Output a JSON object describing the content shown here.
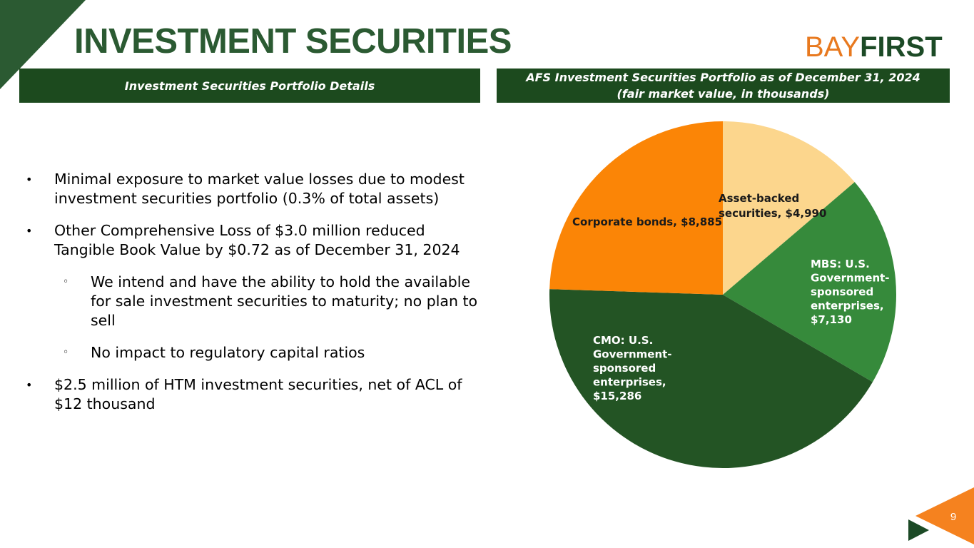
{
  "title": "INVESTMENT SECURITIES",
  "logo": {
    "bay": "BAY",
    "first": "FIRST"
  },
  "left_panel": {
    "heading": "Investment Securities Portfolio Details",
    "bullets": [
      {
        "level": 1,
        "marker": "•",
        "text": "Minimal exposure to market value losses due to modest investment securities portfolio (0.3% of total assets)"
      },
      {
        "level": 1,
        "marker": "•",
        "text": "Other Comprehensive Loss of $3.0 million reduced Tangible Book Value by $0.72 as of December 31, 2024"
      },
      {
        "level": 2,
        "marker": "◦",
        "text": "We intend and have the ability to hold the available for sale investment securities to maturity; no plan to sell"
      },
      {
        "level": 2,
        "marker": "◦",
        "text": "No impact to regulatory capital ratios"
      },
      {
        "level": 1,
        "marker": "•",
        "text": "$2.5 million of HTM investment securities, net of ACL of $12 thousand"
      }
    ]
  },
  "right_panel": {
    "heading_line1": "AFS Investment Securities Portfolio as of December 31, 2024",
    "heading_line2": "(fair market value, in thousands)"
  },
  "chart_data": {
    "type": "pie",
    "start": "12 o'clock, clockwise",
    "slices": [
      {
        "label_lines": [
          "Asset-backed",
          "securities, $4,990"
        ],
        "name": "Asset-backed securities",
        "value": 4990,
        "color": "#fcd68d",
        "label_color": "#1a1a1a"
      },
      {
        "label_lines": [
          "MBS: U.S.",
          "Government-",
          "sponsored",
          "enterprises,",
          "$7,130"
        ],
        "name": "MBS: U.S. Government-sponsored enterprises",
        "value": 7130,
        "color": "#368a3b",
        "label_color": "#ffffff"
      },
      {
        "label_lines": [
          "CMO: U.S.",
          "Government-",
          "sponsored",
          "enterprises,",
          "$15,286"
        ],
        "name": "CMO: U.S. Government-sponsored enterprises",
        "value": 15286,
        "color": "#235424",
        "label_color": "#ffffff"
      },
      {
        "label_lines": [
          "Corporate bonds, $8,885"
        ],
        "name": "Corporate bonds",
        "value": 8885,
        "color": "#fb8506",
        "label_color": "#1a1a1a"
      }
    ]
  },
  "colors": {
    "title": "#2b5a32",
    "banner": "#1c4a1e",
    "accent_orange": "#f5821f",
    "dark_green": "#1c4a26"
  },
  "page_number": "9"
}
